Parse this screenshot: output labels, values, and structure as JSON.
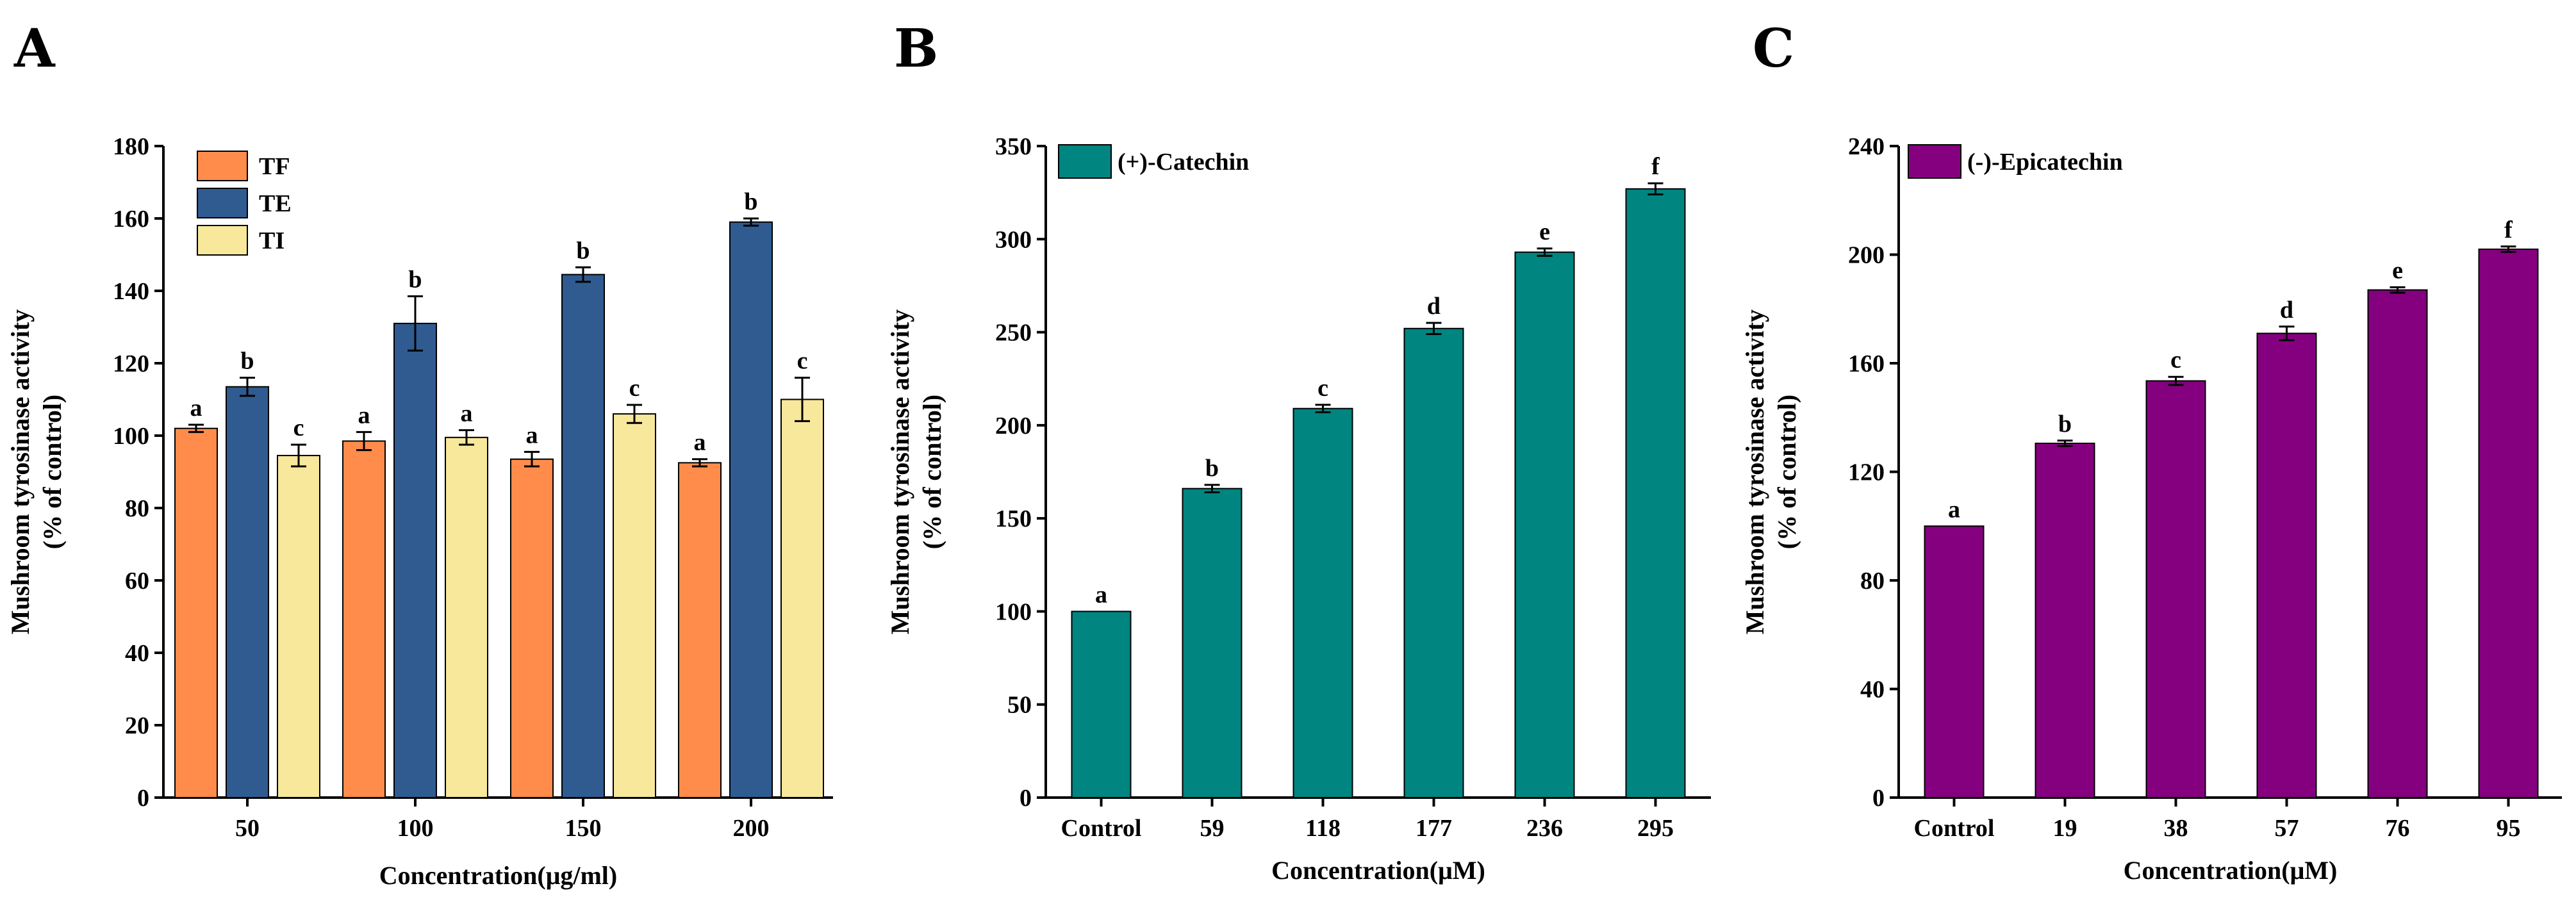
{
  "chart_data": [
    {
      "panel": "A",
      "type": "bar",
      "title": "",
      "xlabel": "Concentration(μg/ml)",
      "ylabel_line1": "Mushroom tyrosinase activity",
      "ylabel_line2": "(% of control)",
      "ylim": [
        0,
        180
      ],
      "yticks": [
        "0",
        "20",
        "40",
        "60",
        "80",
        "100",
        "120",
        "140",
        "160",
        "180"
      ],
      "categories": [
        "50",
        "100",
        "150",
        "200"
      ],
      "legend_position": "top-left",
      "series": [
        {
          "name": "TF",
          "color": "#FF8C4B",
          "values": [
            102,
            98.5,
            93.5,
            92.5
          ],
          "errors": [
            1,
            2.5,
            2,
            1
          ],
          "labels": [
            "a",
            "a",
            "a",
            "a"
          ]
        },
        {
          "name": "TE",
          "color": "#2F5B90",
          "values": [
            113.5,
            131,
            144.5,
            159
          ],
          "errors": [
            2.5,
            7.5,
            2,
            1
          ],
          "labels": [
            "b",
            "b",
            "b",
            "b"
          ]
        },
        {
          "name": "TI",
          "color": "#F7E89B",
          "values": [
            94.5,
            99.5,
            106,
            110
          ],
          "errors": [
            3,
            2,
            2.5,
            6
          ],
          "labels": [
            "c",
            "a",
            "c",
            "c"
          ]
        }
      ]
    },
    {
      "panel": "B",
      "type": "bar",
      "title": "",
      "xlabel": "Concentration(μM)",
      "ylabel_line1": "Mushroom tyrosinase activity",
      "ylabel_line2": "(% of control)",
      "ylim": [
        0,
        350
      ],
      "yticks": [
        "0",
        "50",
        "100",
        "150",
        "200",
        "250",
        "300",
        "350"
      ],
      "categories": [
        "Control",
        "59",
        "118",
        "177",
        "236",
        "295"
      ],
      "legend_position": "top-left",
      "series": [
        {
          "name": "(+)-Catechin",
          "color": "#008580",
          "values": [
            100,
            166,
            209,
            252,
            293,
            327
          ],
          "errors": [
            0,
            2,
            2,
            3,
            2,
            3
          ],
          "labels": [
            "a",
            "b",
            "c",
            "d",
            "e",
            "f"
          ]
        }
      ]
    },
    {
      "panel": "C",
      "type": "bar",
      "title": "",
      "xlabel": "Concentration(μM)",
      "ylabel_line1": "Mushroom tyrosinase activity",
      "ylabel_line2": "(% of control)",
      "ylim": [
        0,
        240
      ],
      "yticks": [
        "0",
        "40",
        "80",
        "120",
        "160",
        "200",
        "240"
      ],
      "categories": [
        "Control",
        "19",
        "38",
        "57",
        "76",
        "95"
      ],
      "legend_position": "top-left",
      "series": [
        {
          "name": "(-)-Epicatechin",
          "color": "#85007F",
          "values": [
            100,
            130.5,
            153.5,
            171,
            187,
            202
          ],
          "errors": [
            0,
            1,
            1.5,
            2.5,
            1,
            1
          ],
          "labels": [
            "a",
            "b",
            "c",
            "d",
            "e",
            "f"
          ]
        }
      ]
    }
  ]
}
